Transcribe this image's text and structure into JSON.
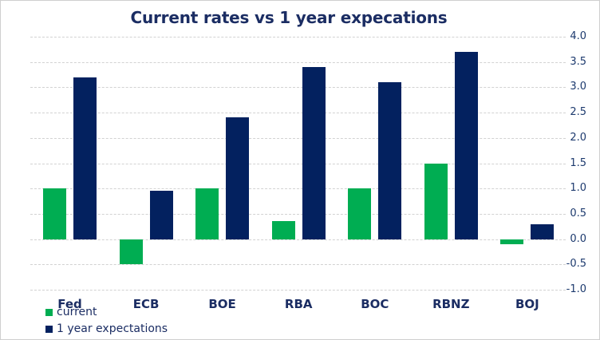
{
  "chart_data": {
    "type": "bar",
    "title": "Current rates vs 1 year expecations",
    "categories": [
      "Fed",
      "ECB",
      "BOE",
      "RBA",
      "BOC",
      "RBNZ",
      "BOJ"
    ],
    "series": [
      {
        "name": "current",
        "color": "#00ad52",
        "values": [
          1.0,
          -0.5,
          1.0,
          0.35,
          1.0,
          1.5,
          -0.1
        ]
      },
      {
        "name": "1 year expectations",
        "color": "#03215f",
        "values": [
          3.2,
          0.95,
          2.4,
          3.4,
          3.1,
          3.7,
          0.3
        ]
      }
    ],
    "xlabel": "",
    "ylabel": "",
    "ylim": [
      -1.0,
      4.0
    ],
    "y_tick_step": 0.5,
    "y_ticks": [
      "4.0",
      "3.5",
      "3.0",
      "2.5",
      "2.0",
      "1.5",
      "1.0",
      "0.5",
      "0.0",
      "-0.5",
      "-1.0"
    ],
    "y_axis_side": "right",
    "grid": "horizontal-dashed",
    "grid_color": "#d2d2d2",
    "legend_position": "bottom-left",
    "axis_label_color": "#1d3a6e",
    "category_label_color": "#1b2d63",
    "title_color": "#1b2d63",
    "background_color": "#ffffff",
    "border_color": "#cfcfcf"
  }
}
